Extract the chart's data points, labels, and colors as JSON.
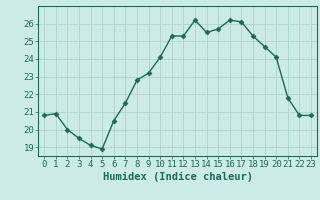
{
  "x": [
    0,
    1,
    2,
    3,
    4,
    5,
    6,
    7,
    8,
    9,
    10,
    11,
    12,
    13,
    14,
    15,
    16,
    17,
    18,
    19,
    20,
    21,
    22,
    23
  ],
  "y": [
    20.8,
    20.9,
    20.0,
    19.5,
    19.1,
    18.9,
    20.5,
    21.5,
    22.8,
    23.2,
    24.1,
    25.3,
    25.3,
    26.2,
    25.5,
    25.7,
    26.2,
    26.1,
    25.3,
    24.7,
    24.1,
    21.8,
    20.8,
    20.8
  ],
  "line_color": "#1a6b5a",
  "marker": "D",
  "marker_size": 2.5,
  "bg_color": "#cceae7",
  "grid_color": "#add4d0",
  "xlabel": "Humidex (Indice chaleur)",
  "ylim": [
    18.5,
    27.0
  ],
  "xlim": [
    -0.5,
    23.5
  ],
  "yticks": [
    19,
    20,
    21,
    22,
    23,
    24,
    25,
    26
  ],
  "xticks": [
    0,
    1,
    2,
    3,
    4,
    5,
    6,
    7,
    8,
    9,
    10,
    11,
    12,
    13,
    14,
    15,
    16,
    17,
    18,
    19,
    20,
    21,
    22,
    23
  ],
  "tick_color": "#1a6b5a",
  "label_color": "#1a6b5a",
  "tick_fontsize": 6.5,
  "xlabel_fontsize": 7.5,
  "linewidth": 1.0
}
